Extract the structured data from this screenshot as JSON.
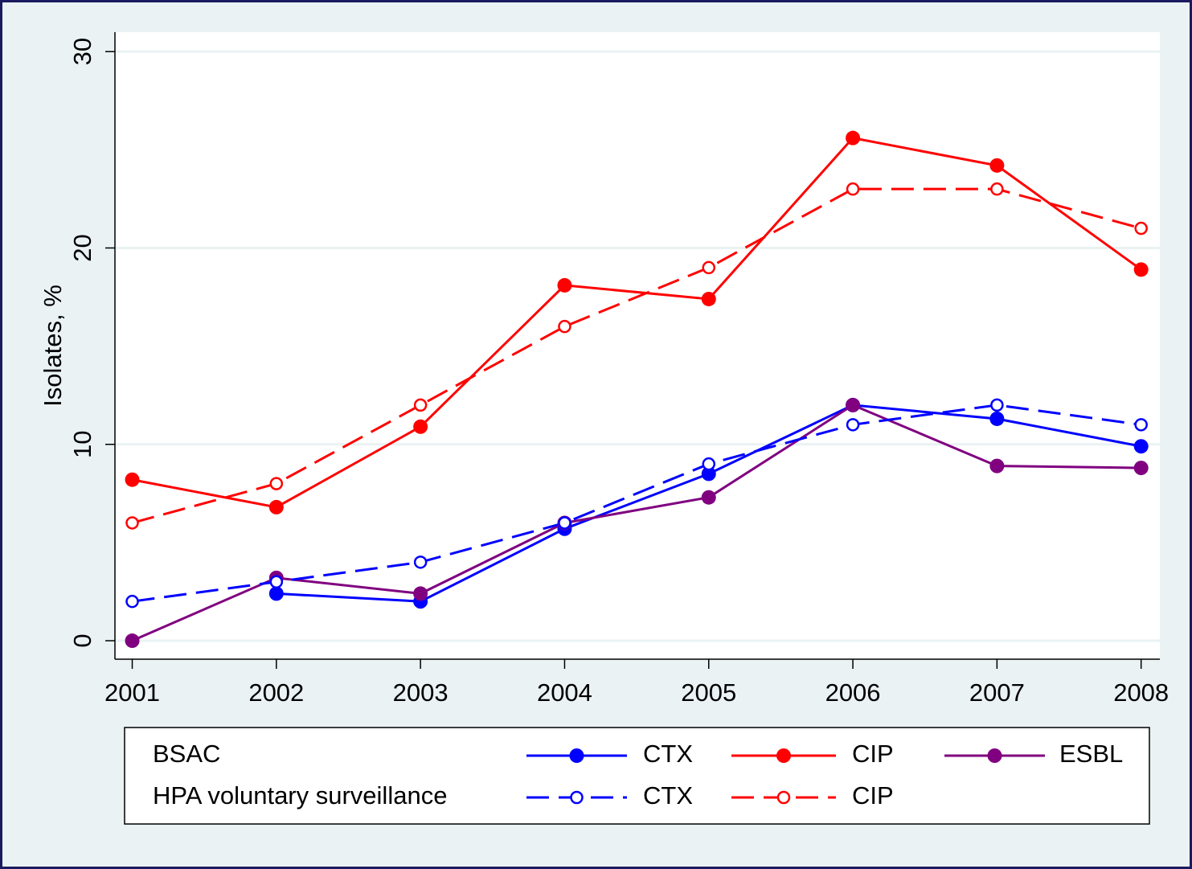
{
  "chart_data": {
    "type": "line",
    "y_label": "Isolates, %",
    "x": [
      2001,
      2002,
      2003,
      2004,
      2005,
      2006,
      2007,
      2008
    ],
    "xlim": [
      2000.88,
      2008.13
    ],
    "xticks": [
      2001,
      2002,
      2003,
      2004,
      2005,
      2006,
      2007,
      2008
    ],
    "ylim": [
      -0.94,
      30.99
    ],
    "yticks": [
      0,
      10,
      20,
      30
    ],
    "grid": true,
    "legend_rows": [
      "BSAC",
      "HPA voluntary surveillance"
    ],
    "series": [
      {
        "name": "CTX",
        "color": "#0000ff",
        "dash": false,
        "marker": "filled",
        "values": [
          null,
          2.4,
          2.0,
          5.7,
          8.5,
          12,
          11.3,
          9.9
        ]
      },
      {
        "name": "CIP",
        "color": "#ff0000",
        "dash": false,
        "marker": "filled",
        "values": [
          8.2,
          6.8,
          10.9,
          18.1,
          17.4,
          25.6,
          24.2,
          18.9
        ]
      },
      {
        "name": "ESBL",
        "color": "#800080",
        "dash": false,
        "marker": "filled",
        "values": [
          0,
          3.2,
          2.4,
          6.0,
          7.3,
          12,
          8.9,
          8.8
        ]
      },
      {
        "name": "CTX",
        "color": "#0000ff",
        "dash": true,
        "marker": "hollow",
        "values": [
          2,
          3,
          4,
          6,
          9,
          11,
          12,
          11
        ]
      },
      {
        "name": "CIP",
        "color": "#ff0000",
        "dash": true,
        "marker": "hollow",
        "values": [
          6,
          8,
          12,
          16,
          19,
          23,
          23,
          21
        ]
      }
    ]
  }
}
